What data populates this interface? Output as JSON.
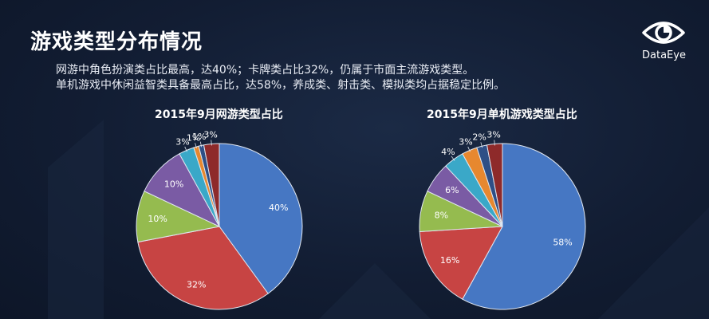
{
  "header": {
    "title": "游戏类型分布情况",
    "lines": [
      "网游中角色扮演类占比最高，达40%；卡牌类占比32%，仍属于市面主流游戏类型。",
      "单机游戏中休闲益智类具备最高占比，达58%，养成类、射击类、模拟类均占据稳定比例。"
    ]
  },
  "logo": {
    "text": "DataEye",
    "icon": "eye-icon"
  },
  "chart_data": [
    {
      "type": "pie",
      "title": "2015年9月网游类型占比",
      "values": [
        40,
        32,
        10,
        10,
        3,
        1,
        1,
        3
      ],
      "labels": [
        "40%",
        "32%",
        "10%",
        "10%",
        "3%",
        "1%",
        "1%",
        "3%"
      ],
      "colors": [
        "#4677c3",
        "#c74443",
        "#95bb4f",
        "#7a5ba4",
        "#3aa8c8",
        "#e7882f",
        "#2e4f86",
        "#8e2a2a"
      ]
    },
    {
      "type": "pie",
      "title": "2015年9月单机游戏类型占比",
      "values": [
        58,
        16,
        8,
        6,
        4,
        3,
        2,
        3
      ],
      "labels": [
        "58%",
        "16%",
        "8%",
        "6%",
        "4%",
        "3%",
        "2%",
        "3%"
      ],
      "colors": [
        "#4677c3",
        "#c74443",
        "#95bb4f",
        "#7a5ba4",
        "#3aa8c8",
        "#e7882f",
        "#2e4f86",
        "#8e2a2a"
      ]
    }
  ]
}
